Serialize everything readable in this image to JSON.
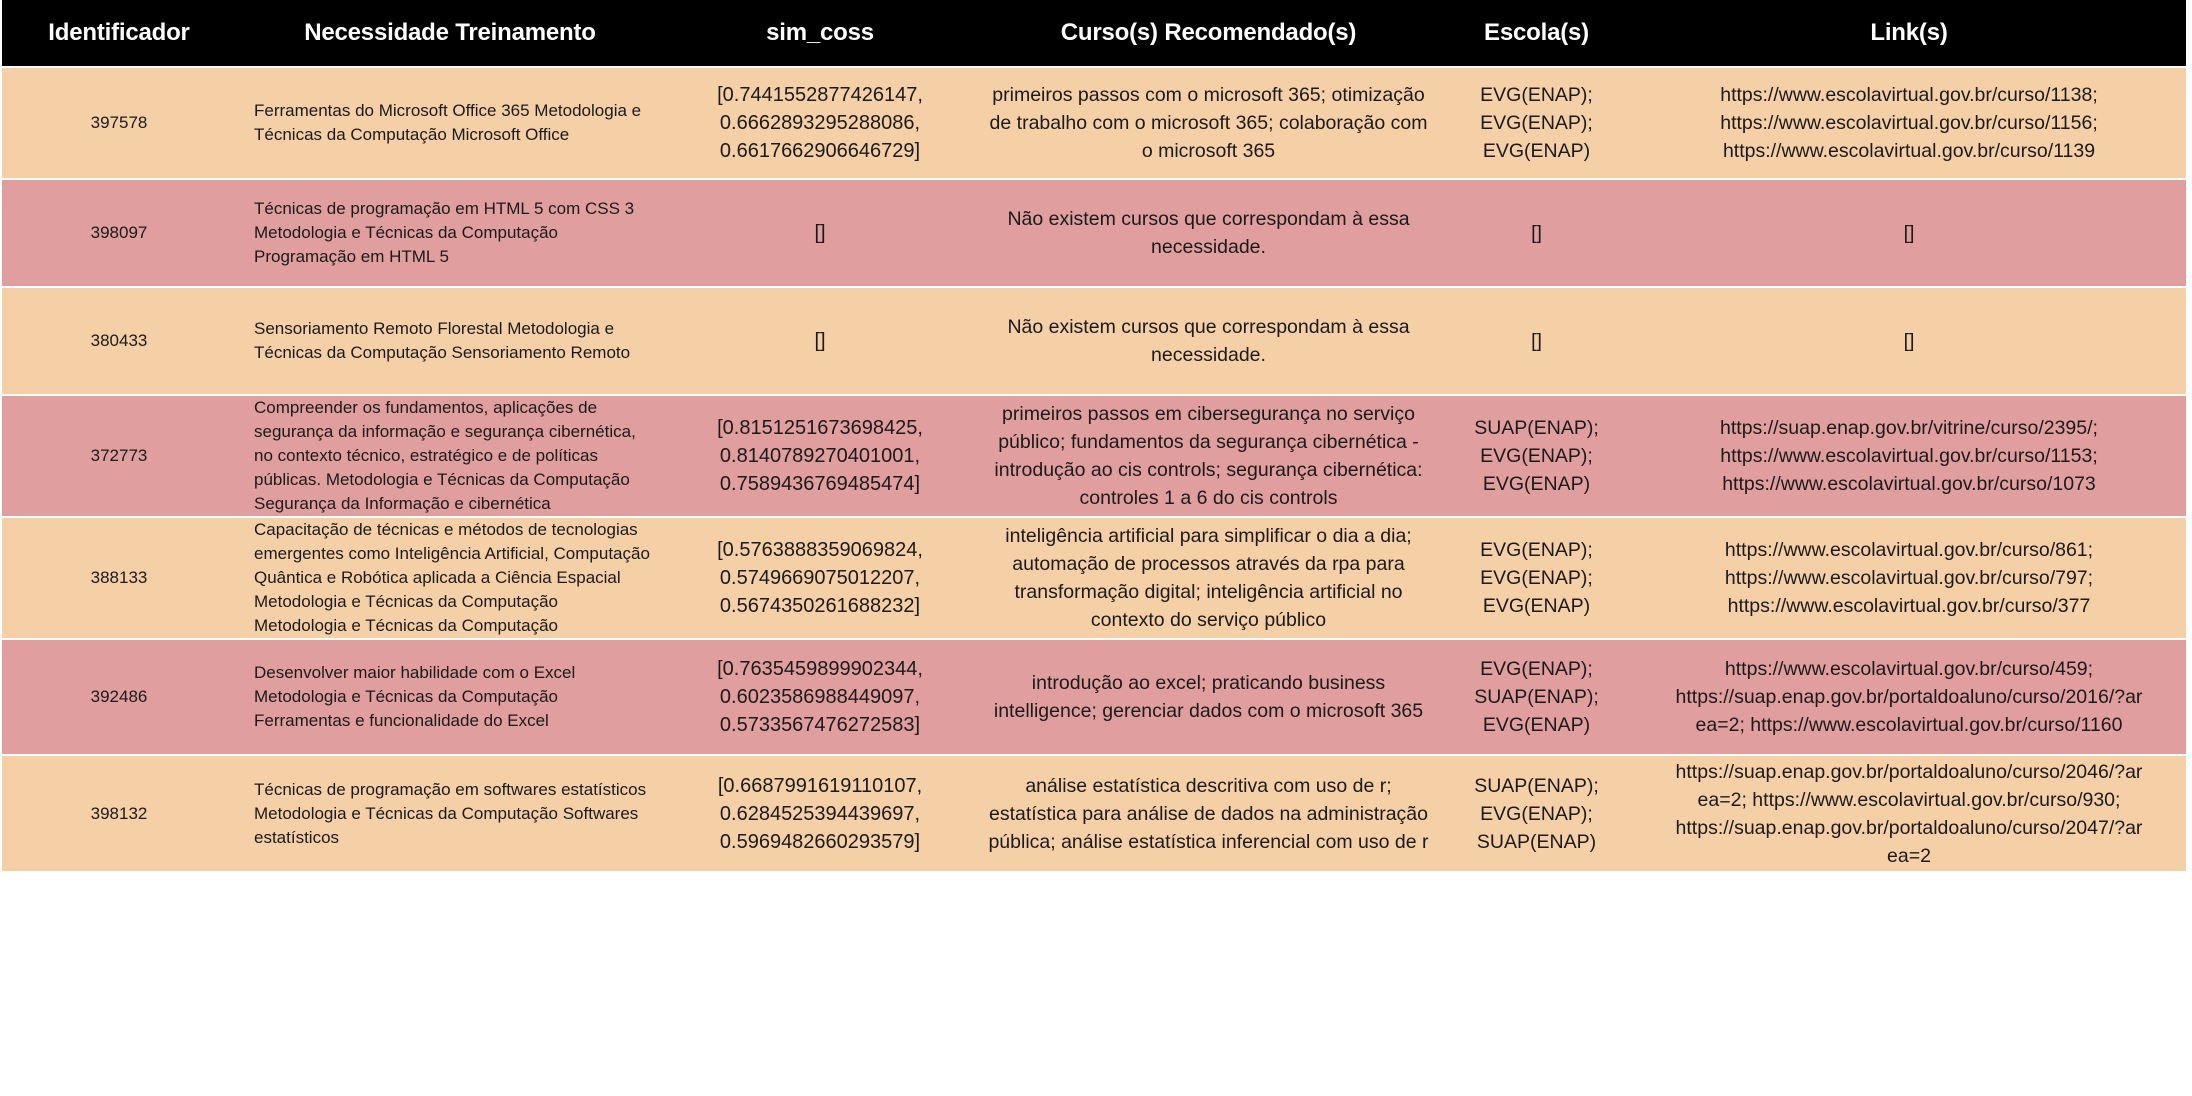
{
  "headers": {
    "id": "Identificador",
    "need": "Necessidade Treinamento",
    "sim": "sim_coss",
    "curso": "Curso(s) Recomendado(s)",
    "escola": "Escola(s)",
    "link": "Link(s)"
  },
  "rows": [
    {
      "id": "397578",
      "need": "Ferramentas do Microsoft Office 365 Metodologia e Técnicas da Computação Microsoft Office",
      "sim": [
        "[0.7441552877426147,",
        "0.6662893295288086,",
        "0.6617662906646729]"
      ],
      "curso": "primeiros passos com o microsoft 365; otimização de trabalho com o microsoft 365; colaboração com o microsoft 365",
      "escola": [
        "EVG(ENAP);",
        "EVG(ENAP);",
        "EVG(ENAP)"
      ],
      "link": [
        "https://www.escolavirtual.gov.br/curso/1138;",
        "https://www.escolavirtual.gov.br/curso/1156;",
        "https://www.escolavirtual.gov.br/curso/1139"
      ]
    },
    {
      "id": "398097",
      "need": "Técnicas de programação em  HTML 5 com CSS 3 Metodologia e Técnicas da Computação Programação em HTML 5",
      "sim": [
        "[]"
      ],
      "curso": "Não existem cursos que correspondam à essa necessidade.",
      "escola": [
        "[]"
      ],
      "link": [
        "[]"
      ]
    },
    {
      "id": "380433",
      "need": "Sensoriamento Remoto Florestal Metodologia e Técnicas da Computação Sensoriamento Remoto",
      "sim": [
        "[]"
      ],
      "curso": "Não existem cursos que correspondam à essa necessidade.",
      "escola": [
        "[]"
      ],
      "link": [
        "[]"
      ]
    },
    {
      "id": "372773",
      "need": "Compreender os fundamentos, aplicações de segurança da informação e segurança cibernética, no contexto técnico, estratégico e de políticas públicas. Metodologia e Técnicas da Computação Segurança da Informação e cibernética",
      "sim": [
        "[0.8151251673698425,",
        "0.8140789270401001,",
        "0.7589436769485474]"
      ],
      "curso": "primeiros passos em cibersegurança no serviço público; fundamentos da segurança cibernética - introdução ao cis controls; segurança cibernética: controles 1 a 6 do cis controls",
      "escola": [
        "SUAP(ENAP);",
        "EVG(ENAP);",
        "EVG(ENAP)"
      ],
      "link": [
        "https://suap.enap.gov.br/vitrine/curso/2395/;",
        "https://www.escolavirtual.gov.br/curso/1153;",
        "https://www.escolavirtual.gov.br/curso/1073"
      ]
    },
    {
      "id": "388133",
      "need": "Capacitação de técnicas e métodos de tecnologias emergentes como Inteligência Artificial, Computação Quântica e Robótica aplicada a Ciência Espacial Metodologia e Técnicas da Computação Metodologia e Técnicas da Computação",
      "sim": [
        "[0.5763888359069824,",
        "0.5749669075012207,",
        "0.5674350261688232]"
      ],
      "curso": "inteligência artificial para simplificar o dia a dia; automação de processos através da rpa para transformação digital; inteligência artificial no contexto do serviço público",
      "escola": [
        "EVG(ENAP);",
        "EVG(ENAP);",
        "EVG(ENAP)"
      ],
      "link": [
        "https://www.escolavirtual.gov.br/curso/861;",
        "https://www.escolavirtual.gov.br/curso/797;",
        "https://www.escolavirtual.gov.br/curso/377"
      ]
    },
    {
      "id": "392486",
      "need": "Desenvolver maior habilidade com o Excel Metodologia e Técnicas da Computação Ferramentas e funcionalidade do Excel",
      "sim": [
        "[0.7635459899902344,",
        "0.6023586988449097,",
        "0.5733567476272583]"
      ],
      "curso": "introdução ao excel; praticando business intelligence; gerenciar dados com o microsoft 365",
      "escola": [
        "EVG(ENAP);",
        "SUAP(ENAP);",
        "EVG(ENAP)"
      ],
      "link": [
        "https://www.escolavirtual.gov.br/curso/459;",
        "https://suap.enap.gov.br/portaldoaluno/curso/2016/?ar",
        "ea=2; https://www.escolavirtual.gov.br/curso/1160"
      ]
    },
    {
      "id": "398132",
      "need": "Técnicas de programação em softwares estatísticos Metodologia e Técnicas da Computação Softwares estatísticos",
      "sim": [
        "[0.6687991619110107,",
        "0.6284525394439697,",
        "0.5969482660293579]"
      ],
      "curso": "análise estatística descritiva com uso de r; estatística para análise de dados na administração pública; análise estatística inferencial com uso de r",
      "escola": [
        "SUAP(ENAP);",
        "EVG(ENAP);",
        "SUAP(ENAP)"
      ],
      "link": [
        "https://suap.enap.gov.br/portaldoaluno/curso/2046/?ar",
        "ea=2; https://www.escolavirtual.gov.br/curso/930;",
        "https://suap.enap.gov.br/portaldoaluno/curso/2047/?ar",
        "ea=2"
      ]
    }
  ]
}
